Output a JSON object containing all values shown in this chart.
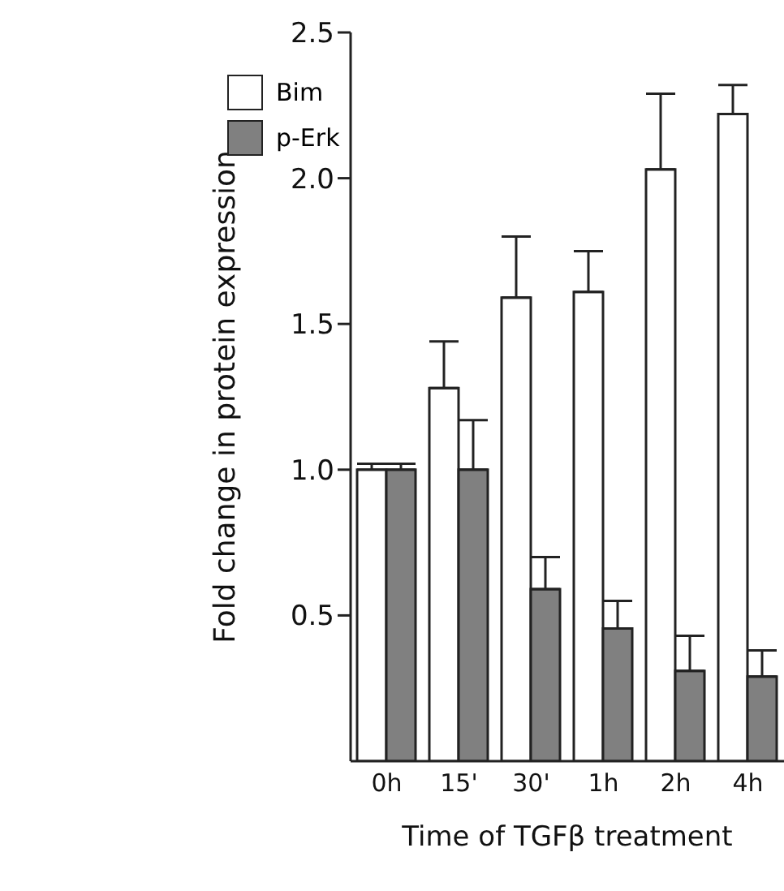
{
  "chart_data": {
    "type": "bar",
    "xlabel": "Time of TGFβ treatment",
    "ylabel": "Fold change in protein expression",
    "categories": [
      "0h",
      "15'",
      "30'",
      "1h",
      "2h",
      "4h"
    ],
    "series": [
      {
        "name": "Bim",
        "color": "#ffffff",
        "values": [
          1.0,
          1.28,
          1.59,
          1.61,
          2.03,
          2.22
        ],
        "errors": [
          [
            1.0,
            1.02
          ],
          [
            1.28,
            1.44
          ],
          [
            1.59,
            1.8
          ],
          [
            1.61,
            1.75
          ],
          [
            2.03,
            2.29
          ],
          [
            2.22,
            2.32
          ]
        ]
      },
      {
        "name": "p-Erk",
        "color": "#808080",
        "values": [
          1.0,
          1.0,
          0.59,
          0.455,
          0.31,
          0.29
        ],
        "errors": [
          [
            1.0,
            1.02
          ],
          [
            1.0,
            1.17
          ],
          [
            0.59,
            0.7
          ],
          [
            0.455,
            0.55
          ],
          [
            0.31,
            0.43
          ],
          [
            0.29,
            0.38
          ]
        ]
      }
    ],
    "ylim": [
      0,
      2.5
    ],
    "yticks": [
      {
        "value": 0.5,
        "label": "0.5"
      },
      {
        "value": 1,
        "label": "1.0"
      },
      {
        "value": 1.5,
        "label": "1.5"
      },
      {
        "value": 2,
        "label": "2.0"
      },
      {
        "value": 2.5,
        "label": "2.5"
      }
    ],
    "grid": false,
    "legend": "top left"
  }
}
